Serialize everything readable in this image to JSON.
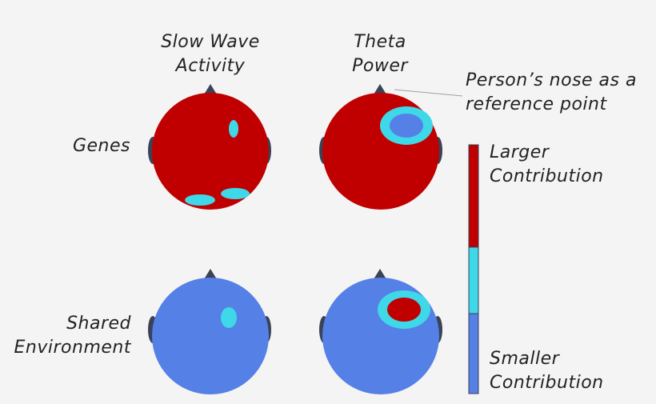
{
  "columns": [
    {
      "line1": "Slow Wave",
      "line2": "Activity"
    },
    {
      "line1": "Theta",
      "line2": "Power"
    }
  ],
  "rows": [
    {
      "label": "Genes"
    },
    {
      "line1": "Shared",
      "line2": "Environment"
    }
  ],
  "annotation": {
    "line1": "Person’s nose as a",
    "line2": "reference point"
  },
  "legend": {
    "larger_line1": "Larger",
    "larger_line2": "Contribution",
    "smaller_line1": "Smaller",
    "smaller_line2": "Contribution"
  },
  "colors": {
    "large": "#c00000",
    "medium": "#3fd8e8",
    "small": "#5580e6",
    "head_outline": "#3a4256",
    "background": "#f4f4f4"
  },
  "icons": {
    "nose": "triangle",
    "ear": "half-ellipse"
  }
}
